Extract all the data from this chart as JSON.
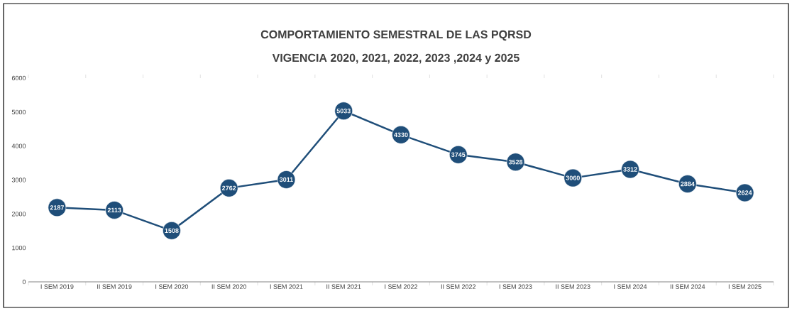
{
  "chart_data": {
    "type": "line",
    "title": "COMPORTAMIENTO SEMESTRAL DE LAS PQRSD",
    "subtitle": "VIGENCIA 2020, 2021, 2022,  2023 ,2024 y 2025",
    "categories": [
      "I SEM 2019",
      "II SEM 2019",
      "I SEM 2020",
      "II SEM 2020",
      "I SEM 2021",
      "II SEM 2021",
      "I SEM 2022",
      "II SEM 2022",
      "I SEM 2023",
      "II SEM 2023",
      "I SEM 2024",
      "II SEM 2024",
      "I SEM 2025"
    ],
    "values": [
      2187,
      2113,
      1508,
      2762,
      3011,
      5033,
      4330,
      3745,
      3528,
      3060,
      3312,
      2884,
      2624
    ],
    "color": "#1f4e79",
    "marker": "circle",
    "line_style": "solid",
    "data_labels": true,
    "ylim": [
      0,
      6000
    ],
    "yticks": [
      0,
      1000,
      2000,
      3000,
      4000,
      5000,
      6000
    ]
  }
}
